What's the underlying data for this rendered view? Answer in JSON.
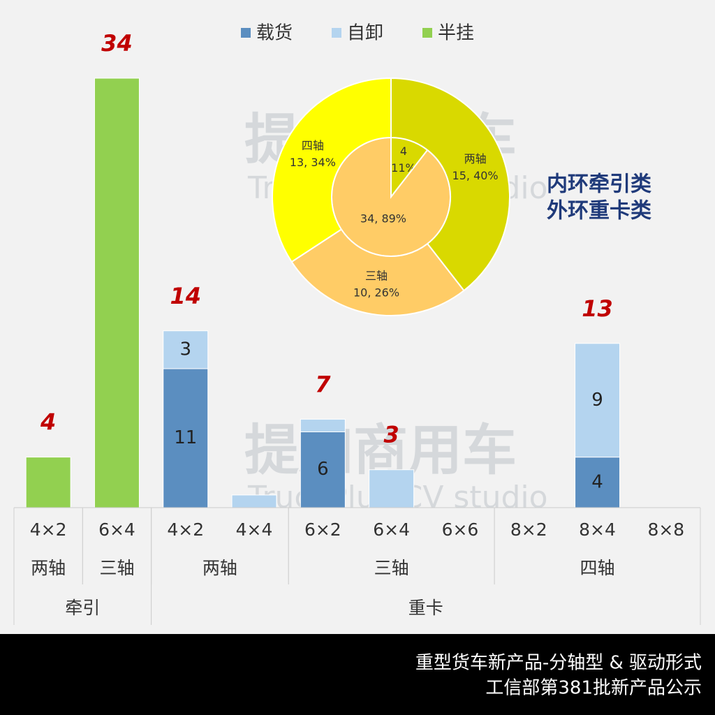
{
  "chart_data": [
    {
      "type": "bar",
      "stacked": true,
      "legend_position": "top",
      "categories": [
        "4×2",
        "6×4",
        "4×2",
        "4×4",
        "6×2",
        "6×4",
        "6×6",
        "8×2",
        "8×4",
        "8×8"
      ],
      "categories_level2": [
        "两轴",
        "三轴",
        "两轴",
        null,
        "三轴",
        null,
        null,
        "四轴",
        null,
        null
      ],
      "categories_level3": [
        "牵引",
        null,
        "重卡",
        null,
        null,
        null,
        null,
        null,
        null,
        null
      ],
      "series": [
        {
          "name": "载货",
          "color": "#5b8ec0",
          "values": [
            null,
            null,
            11,
            0,
            6,
            0,
            0,
            0,
            4,
            0
          ],
          "value_labels": [
            null,
            null,
            "11",
            null,
            "6",
            null,
            null,
            null,
            "4",
            null
          ]
        },
        {
          "name": "自卸",
          "color": "#b4d4ef",
          "values": [
            null,
            null,
            3,
            1,
            1,
            3,
            0,
            0,
            9,
            0
          ],
          "value_labels": [
            null,
            null,
            "3",
            null,
            null,
            null,
            null,
            null,
            "9",
            null
          ]
        },
        {
          "name": "半挂",
          "color": "#92d050",
          "values": [
            4,
            34,
            null,
            null,
            null,
            null,
            null,
            null,
            null,
            null
          ],
          "value_labels": [
            null,
            null,
            null,
            null,
            null,
            null,
            null,
            null,
            null,
            null
          ]
        }
      ],
      "total_labels": [
        4,
        34,
        14,
        null,
        7,
        3,
        null,
        null,
        13,
        null
      ],
      "ylim": [
        0,
        34
      ]
    },
    {
      "type": "donut",
      "annotation": [
        "内环牵引类",
        "外环重卡类"
      ],
      "rings": [
        {
          "values": [
            4,
            34
          ],
          "colors": [
            "#d9d900",
            "#ffcc66"
          ],
          "value_labels": [
            [
              "4",
              "11%"
            ],
            [
              "34, 89%"
            ]
          ]
        },
        {
          "categories": [
            "两轴",
            "三轴",
            "四轴"
          ],
          "values": [
            15,
            10,
            13
          ],
          "colors": [
            "#d9d900",
            "#ffcc66",
            "#ffff00"
          ],
          "value_labels": [
            "15, 40%",
            "10, 26%",
            "13, 34%"
          ]
        }
      ]
    }
  ],
  "watermark": {
    "name": "提加商用车",
    "subtitle": "TruckPlus CV studio"
  },
  "footer": [
    "重型货车新产品-分轴型 & 驱动形式",
    "工信部第381批新产品公示"
  ]
}
